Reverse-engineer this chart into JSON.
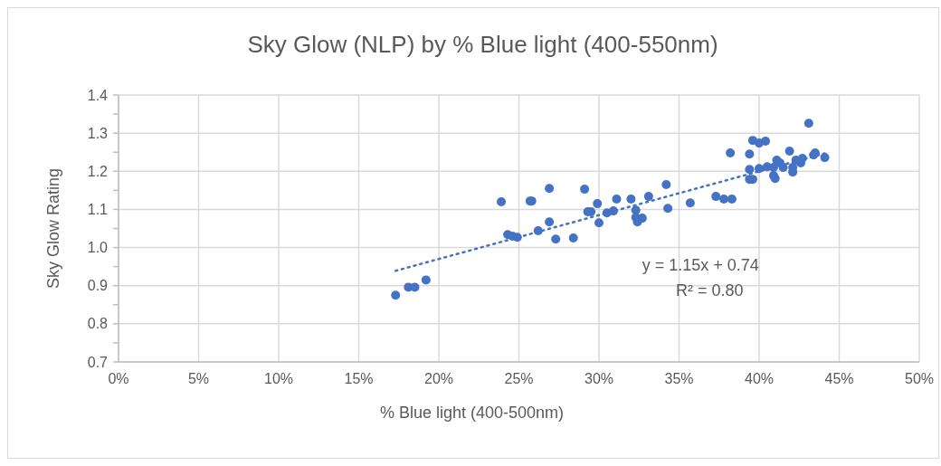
{
  "chart_data": {
    "type": "scatter",
    "title": "Sky Glow (NLP) by % Blue light (400-550nm)",
    "xlabel": "% Blue light (400-500nm)",
    "ylabel": "Sky Glow Rating",
    "xlim": [
      0,
      0.5
    ],
    "xticks": [
      {
        "value": 0,
        "label": "0%"
      },
      {
        "value": 0.05,
        "label": "5%"
      },
      {
        "value": 0.1,
        "label": "10%"
      },
      {
        "value": 0.15,
        "label": "15%"
      },
      {
        "value": 0.2,
        "label": "20%"
      },
      {
        "value": 0.25,
        "label": "25%"
      },
      {
        "value": 0.3,
        "label": "30%"
      },
      {
        "value": 0.35,
        "label": "35%"
      },
      {
        "value": 0.4,
        "label": "40%"
      },
      {
        "value": 0.45,
        "label": "45%"
      },
      {
        "value": 0.5,
        "label": "50%"
      }
    ],
    "ylim": [
      0.7,
      1.4
    ],
    "yticks": [
      0.7,
      {
        "value": 0.75,
        "label": null
      },
      0.8,
      {
        "value": 0.85,
        "label": null
      },
      0.9,
      {
        "value": 0.95,
        "label": null
      },
      {
        "value": 1,
        "label": "1.0"
      },
      {
        "value": 1.05,
        "label": null
      },
      1.1,
      {
        "value": 1.15,
        "label": null
      },
      1.2,
      {
        "value": 1.25,
        "label": null
      },
      1.3,
      {
        "value": 1.35,
        "label": null
      },
      1.4
    ],
    "grid": true,
    "series": [
      {
        "color": "#4472c4",
        "marker": "circle",
        "x": [
          0.173,
          0.181,
          0.185,
          0.192,
          0.239,
          0.243,
          0.246,
          0.249,
          0.257,
          0.258,
          0.262,
          0.269,
          0.269,
          0.273,
          0.284,
          0.291,
          0.293,
          0.295,
          0.299,
          0.3,
          0.305,
          0.309,
          0.311,
          0.32,
          0.323,
          0.323,
          0.324,
          0.327,
          0.331,
          0.342,
          0.343,
          0.357,
          0.373,
          0.378,
          0.383,
          0.382,
          0.394,
          0.394,
          0.394,
          0.396,
          0.396,
          0.4,
          0.4,
          0.404,
          0.405,
          0.409,
          0.409,
          0.41,
          0.411,
          0.413,
          0.415,
          0.419,
          0.421,
          0.421,
          0.423,
          0.426,
          0.427,
          0.431,
          0.434,
          0.435,
          0.441
        ],
        "values": [
          0.875,
          0.896,
          0.896,
          0.915,
          1.12,
          1.034,
          1.03,
          1.027,
          1.122,
          1.122,
          1.044,
          1.155,
          1.067,
          1.022,
          1.025,
          1.153,
          1.094,
          1.094,
          1.115,
          1.065,
          1.091,
          1.096,
          1.127,
          1.127,
          1.098,
          1.079,
          1.067,
          1.077,
          1.134,
          1.165,
          1.103,
          1.117,
          1.134,
          1.127,
          1.127,
          1.248,
          1.205,
          1.245,
          1.179,
          1.179,
          1.281,
          1.207,
          1.274,
          1.279,
          1.212,
          1.21,
          1.189,
          1.181,
          1.229,
          1.222,
          1.21,
          1.253,
          1.21,
          1.198,
          1.229,
          1.222,
          1.234,
          1.326,
          1.243,
          1.248,
          1.236
        ]
      },
      {
        "type": "line",
        "color": "#4472c4",
        "line_style": "dotted",
        "marker": "none",
        "x": [
          0.173,
          0.441
        ],
        "values": [
          0.939,
          1.247
        ]
      }
    ],
    "annotations": [
      "y = 1.15x + 0.74",
      "R² = 0.80"
    ]
  }
}
